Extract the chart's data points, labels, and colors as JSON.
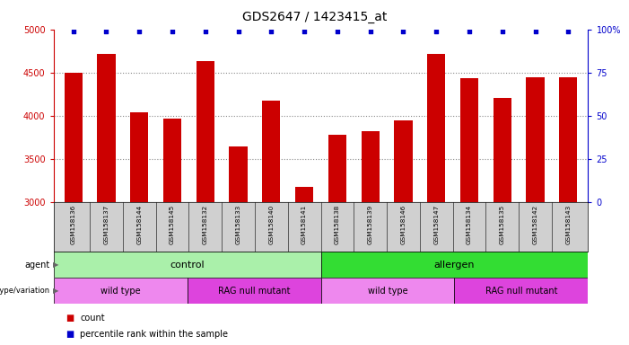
{
  "title": "GDS2647 / 1423415_at",
  "samples": [
    "GSM158136",
    "GSM158137",
    "GSM158144",
    "GSM158145",
    "GSM158132",
    "GSM158133",
    "GSM158140",
    "GSM158141",
    "GSM158138",
    "GSM158139",
    "GSM158146",
    "GSM158147",
    "GSM158134",
    "GSM158135",
    "GSM158142",
    "GSM158143"
  ],
  "counts_full": [
    4500,
    4720,
    4040,
    3960,
    4630,
    3640,
    4170,
    3170,
    3780,
    3820,
    3940,
    4720,
    4430,
    4200,
    4440,
    4440
  ],
  "percentile_rank": 99,
  "bar_color": "#cc0000",
  "dot_color": "#0000cc",
  "ylim_left": [
    3000,
    5000
  ],
  "ylim_right": [
    0,
    100
  ],
  "yticks_left": [
    3000,
    3500,
    4000,
    4500,
    5000
  ],
  "yticks_right": [
    0,
    25,
    50,
    75,
    100
  ],
  "ytick_labels_right": [
    "0",
    "25",
    "50",
    "75",
    "100%"
  ],
  "gridlines_at": [
    3500,
    4000,
    4500
  ],
  "agent_groups": [
    {
      "label": "control",
      "start": 0,
      "end": 8,
      "color": "#aaf0aa"
    },
    {
      "label": "allergen",
      "start": 8,
      "end": 16,
      "color": "#33dd33"
    }
  ],
  "genotype_groups": [
    {
      "label": "wild type",
      "start": 0,
      "end": 4,
      "color": "#ee88ee"
    },
    {
      "label": "RAG null mutant",
      "start": 4,
      "end": 8,
      "color": "#dd44dd"
    },
    {
      "label": "wild type",
      "start": 8,
      "end": 12,
      "color": "#ee88ee"
    },
    {
      "label": "RAG null mutant",
      "start": 12,
      "end": 16,
      "color": "#dd44dd"
    }
  ],
  "background_color": "#ffffff",
  "grid_color": "#888888",
  "title_fontsize": 10,
  "tick_fontsize": 7,
  "label_fontsize": 6,
  "bar_width": 0.55,
  "sample_label_bg": "#d0d0d0",
  "arrow_color": "#666666"
}
